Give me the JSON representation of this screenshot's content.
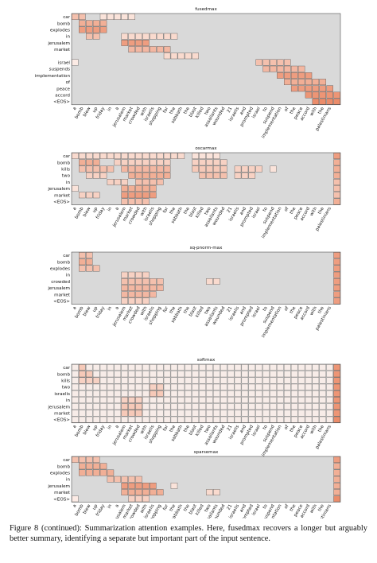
{
  "figure": {
    "columns": [
      "a",
      "bomb",
      "blew",
      "up",
      "friday",
      "in",
      "a",
      "jerusalem",
      "market",
      "crowded",
      "with",
      "israelis",
      "shopping",
      "for",
      "the",
      "sabbath",
      "the",
      "blast",
      "killed",
      "two",
      "assailants",
      "wounded",
      "21",
      "israelis",
      "and",
      "prompted",
      "israel",
      "to",
      "suspend",
      "implementation",
      "of",
      "the",
      "peace",
      "accord",
      "with",
      "the",
      "palestinians",
      null
    ],
    "panels": [
      {
        "title": "fusedmax",
        "rows": [
          "car",
          "bomb",
          "explodes",
          "in",
          "jerusalem",
          "market",
          null,
          "israel",
          "suspends",
          "implementation",
          "of",
          "peace",
          "accord",
          "<EOS>"
        ],
        "cells": [
          [
            0,
            0,
            1,
            0.3
          ],
          [
            0,
            4,
            8,
            0.1
          ],
          [
            1,
            1,
            4,
            0.4
          ],
          [
            2,
            1,
            4,
            0.5
          ],
          [
            3,
            2,
            3,
            0.3
          ],
          [
            3,
            7,
            14,
            0.15
          ],
          [
            4,
            7,
            10,
            0.5
          ],
          [
            5,
            8,
            13,
            0.35
          ],
          [
            6,
            13,
            17,
            0.15
          ],
          [
            7,
            0,
            0,
            0.05
          ],
          [
            7,
            26,
            30,
            0.3
          ],
          [
            8,
            27,
            32,
            0.35
          ],
          [
            9,
            29,
            33,
            0.5
          ],
          [
            10,
            30,
            35,
            0.4
          ],
          [
            11,
            31,
            36,
            0.5
          ],
          [
            12,
            33,
            37,
            0.55
          ],
          [
            13,
            34,
            37,
            0.6
          ]
        ]
      },
      {
        "title": "oscarmax",
        "rows": [
          "car",
          "bomb",
          "kills",
          "two",
          "in",
          "jerusalem",
          "market",
          "<EOS>"
        ],
        "cells": [
          [
            0,
            0,
            15,
            0.15
          ],
          [
            0,
            17,
            20,
            0.1
          ],
          [
            0,
            37,
            37,
            0.5
          ],
          [
            1,
            1,
            3,
            0.4
          ],
          [
            1,
            6,
            13,
            0.2
          ],
          [
            1,
            17,
            21,
            0.2
          ],
          [
            1,
            37,
            37,
            0.4
          ],
          [
            2,
            1,
            5,
            0.3
          ],
          [
            2,
            7,
            13,
            0.35
          ],
          [
            2,
            17,
            21,
            0.25
          ],
          [
            2,
            23,
            26,
            0.2
          ],
          [
            2,
            28,
            28,
            0.1
          ],
          [
            2,
            37,
            37,
            0.4
          ],
          [
            3,
            2,
            4,
            0.2
          ],
          [
            3,
            8,
            13,
            0.4
          ],
          [
            3,
            18,
            21,
            0.3
          ],
          [
            3,
            23,
            25,
            0.2
          ],
          [
            3,
            37,
            37,
            0.4
          ],
          [
            4,
            5,
            7,
            0.2
          ],
          [
            4,
            9,
            12,
            0.3
          ],
          [
            4,
            37,
            37,
            0.3
          ],
          [
            5,
            0,
            0,
            0.1
          ],
          [
            5,
            7,
            11,
            0.4
          ],
          [
            5,
            37,
            37,
            0.3
          ],
          [
            6,
            1,
            3,
            0.2
          ],
          [
            6,
            7,
            11,
            0.5
          ],
          [
            6,
            37,
            37,
            0.3
          ],
          [
            7,
            7,
            10,
            0.3
          ],
          [
            7,
            37,
            37,
            0.4
          ]
        ]
      },
      {
        "title": "sq-pnorm-max",
        "rows": [
          "car",
          "bomb",
          "explodes",
          "in",
          "crowded",
          "jerusalem",
          "market",
          "<EOS>"
        ],
        "cells": [
          [
            0,
            1,
            2,
            0.3
          ],
          [
            0,
            37,
            37,
            0.5
          ],
          [
            1,
            1,
            2,
            0.4
          ],
          [
            1,
            37,
            37,
            0.5
          ],
          [
            2,
            1,
            3,
            0.3
          ],
          [
            2,
            37,
            37,
            0.5
          ],
          [
            3,
            7,
            10,
            0.2
          ],
          [
            3,
            37,
            37,
            0.5
          ],
          [
            4,
            7,
            12,
            0.3
          ],
          [
            4,
            19,
            20,
            0.15
          ],
          [
            4,
            37,
            37,
            0.5
          ],
          [
            5,
            7,
            12,
            0.35
          ],
          [
            5,
            37,
            37,
            0.5
          ],
          [
            6,
            7,
            11,
            0.35
          ],
          [
            6,
            37,
            37,
            0.5
          ],
          [
            7,
            7,
            10,
            0.2
          ],
          [
            7,
            37,
            37,
            0.5
          ]
        ]
      },
      {
        "title": "softmax",
        "dense": true,
        "rows": [
          "car",
          "bomb",
          "kills",
          "two",
          "israelis",
          "in",
          "jerusalem",
          "market",
          "<EOS>"
        ],
        "cells": [
          [
            0,
            1,
            1,
            0.25
          ],
          [
            0,
            37,
            37,
            0.55
          ],
          [
            1,
            1,
            2,
            0.25
          ],
          [
            1,
            37,
            37,
            0.55
          ],
          [
            2,
            1,
            3,
            0.2
          ],
          [
            2,
            37,
            37,
            0.55
          ],
          [
            3,
            11,
            12,
            0.2
          ],
          [
            3,
            37,
            37,
            0.55
          ],
          [
            4,
            11,
            12,
            0.25
          ],
          [
            4,
            37,
            37,
            0.55
          ],
          [
            5,
            7,
            9,
            0.2
          ],
          [
            5,
            37,
            37,
            0.55
          ],
          [
            6,
            7,
            9,
            0.25
          ],
          [
            6,
            37,
            37,
            0.55
          ],
          [
            7,
            7,
            9,
            0.25
          ],
          [
            7,
            37,
            37,
            0.55
          ],
          [
            8,
            37,
            37,
            0.6
          ]
        ]
      },
      {
        "title": "sparsemax",
        "rows": [
          "car",
          "bomb",
          "explodes",
          "in",
          "jerusalem",
          "market",
          "<EOS>"
        ],
        "cells": [
          [
            0,
            0,
            3,
            0.3
          ],
          [
            0,
            37,
            37,
            0.5
          ],
          [
            1,
            1,
            4,
            0.4
          ],
          [
            1,
            37,
            37,
            0.4
          ],
          [
            2,
            1,
            5,
            0.4
          ],
          [
            2,
            37,
            37,
            0.4
          ],
          [
            3,
            5,
            9,
            0.3
          ],
          [
            3,
            37,
            37,
            0.4
          ],
          [
            4,
            7,
            11,
            0.5
          ],
          [
            4,
            14,
            14,
            0.1
          ],
          [
            4,
            37,
            37,
            0.4
          ],
          [
            5,
            7,
            12,
            0.4
          ],
          [
            5,
            19,
            20,
            0.15
          ],
          [
            5,
            37,
            37,
            0.4
          ],
          [
            6,
            0,
            0,
            0.05
          ],
          [
            6,
            8,
            10,
            0.2
          ],
          [
            6,
            37,
            37,
            0.6
          ]
        ]
      }
    ]
  },
  "caption": "Figure 8 (continued): Summarization attention examples. Here, fusedmax recovers a longer but arguably better summary, identifying a separate but important part of the input sentence."
}
